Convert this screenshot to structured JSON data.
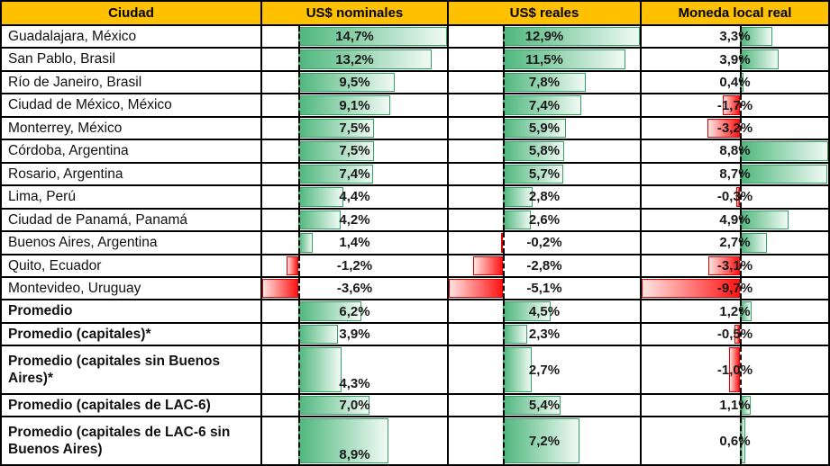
{
  "header": {
    "bg_color": "#FFC000",
    "columns": [
      "Ciudad",
      "US$ nominales",
      "US$ reales",
      "Moneda local real"
    ]
  },
  "chart_data": {
    "type": "table",
    "title": "",
    "columns": [
      "Ciudad",
      "US$ nominales",
      "US$ reales",
      "Moneda local real"
    ],
    "value_column_keys": [
      "nominales",
      "reales",
      "local"
    ],
    "axes": [
      {
        "min": -3.6,
        "max": 14.7
      },
      {
        "min": -5.1,
        "max": 12.9
      },
      {
        "min": -9.7,
        "max": 8.8
      }
    ],
    "bar_colors": {
      "positive_fill": "#4FB77D",
      "positive_fade": "#F0FAF4",
      "positive_border": "#35A363",
      "negative_fill": "#FF1414",
      "negative_fade": "#FFE4E2",
      "negative_border": "#E00000"
    },
    "rows": [
      {
        "ciudad": "Guadalajara, México",
        "values": [
          14.7,
          12.9,
          3.3
        ],
        "labels": [
          "14,7%",
          "12,9%",
          "3,3%"
        ],
        "bold": false,
        "tall": false
      },
      {
        "ciudad": "San Pablo, Brasil",
        "values": [
          13.2,
          11.5,
          3.9
        ],
        "labels": [
          "13,2%",
          "11,5%",
          "3,9%"
        ],
        "bold": false,
        "tall": false
      },
      {
        "ciudad": "Río de Janeiro, Brasil",
        "values": [
          9.5,
          7.8,
          0.4
        ],
        "labels": [
          "9,5%",
          "7,8%",
          "0,4%"
        ],
        "bold": false,
        "tall": false
      },
      {
        "ciudad": "Ciudad de México, México",
        "values": [
          9.1,
          7.4,
          -1.7
        ],
        "labels": [
          "9,1%",
          "7,4%",
          "-1,7%"
        ],
        "bold": false,
        "tall": false
      },
      {
        "ciudad": "Monterrey, México",
        "values": [
          7.5,
          5.9,
          -3.2
        ],
        "labels": [
          "7,5%",
          "5,9%",
          "-3,2%"
        ],
        "bold": false,
        "tall": false
      },
      {
        "ciudad": "Córdoba, Argentina",
        "values": [
          7.5,
          5.8,
          8.8
        ],
        "labels": [
          "7,5%",
          "5,8%",
          "8,8%"
        ],
        "bold": false,
        "tall": false
      },
      {
        "ciudad": "Rosario, Argentina",
        "values": [
          7.4,
          5.7,
          8.7
        ],
        "labels": [
          "7,4%",
          "5,7%",
          "8,7%"
        ],
        "bold": false,
        "tall": false
      },
      {
        "ciudad": "Lima, Perú",
        "values": [
          4.4,
          2.8,
          -0.3
        ],
        "labels": [
          "4,4%",
          "2,8%",
          "-0,3%"
        ],
        "bold": false,
        "tall": false
      },
      {
        "ciudad": "Ciudad de Panamá, Panamá",
        "values": [
          4.2,
          2.6,
          4.9
        ],
        "labels": [
          "4,2%",
          "2,6%",
          "4,9%"
        ],
        "bold": false,
        "tall": false
      },
      {
        "ciudad": "Buenos Aires, Argentina",
        "values": [
          1.4,
          -0.2,
          2.7
        ],
        "labels": [
          "1,4%",
          "-0,2%",
          "2,7%"
        ],
        "bold": false,
        "tall": false
      },
      {
        "ciudad": "Quito, Ecuador",
        "values": [
          -1.2,
          -2.8,
          -3.1
        ],
        "labels": [
          "-1,2%",
          "-2,8%",
          "-3,1%"
        ],
        "bold": false,
        "tall": false
      },
      {
        "ciudad": "Montevideo, Uruguay",
        "values": [
          -3.6,
          -5.1,
          -9.7
        ],
        "labels": [
          "-3,6%",
          "-5,1%",
          "-9,7%"
        ],
        "bold": false,
        "tall": false
      },
      {
        "ciudad": "Promedio",
        "values": [
          6.2,
          4.5,
          1.2
        ],
        "labels": [
          "6,2%",
          "4,5%",
          "1,2%"
        ],
        "bold": true,
        "tall": false
      },
      {
        "ciudad": "Promedio (capitales)*",
        "values": [
          3.9,
          2.3,
          -0.5
        ],
        "labels": [
          "3,9%",
          "2,3%",
          "-0,5%"
        ],
        "bold": true,
        "tall": false
      },
      {
        "ciudad": "Promedio (capitales sin Buenos Aires)*",
        "values": [
          4.3,
          2.7,
          -1.0
        ],
        "labels": [
          "4,3%",
          "2,7%",
          "-1,0%"
        ],
        "bold": true,
        "tall": true
      },
      {
        "ciudad": "Promedio (capitales de LAC-6)",
        "values": [
          7.0,
          5.4,
          1.1
        ],
        "labels": [
          "7,0%",
          "5,4%",
          "1,1%"
        ],
        "bold": true,
        "tall": false
      },
      {
        "ciudad": "Promedio (capitales de LAC-6 sin Buenos Aires)",
        "values": [
          8.9,
          7.2,
          0.6
        ],
        "labels": [
          "8,9%",
          "7,2%",
          "0,6%"
        ],
        "bold": true,
        "tall": true
      }
    ]
  }
}
